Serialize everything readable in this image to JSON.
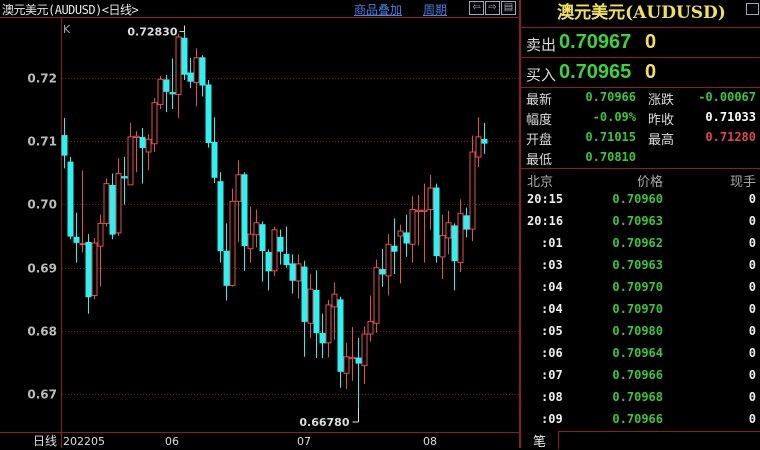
{
  "header": {
    "title": "澳元美元(AUDUSD)<日线>",
    "overlay_link": "商品叠加",
    "period_link": "周期",
    "nav_icons": [
      "arrow-left-icon",
      "arrow-right-icon",
      "split-panel-icon"
    ]
  },
  "quote": {
    "title": "澳元美元(AUDUSD)",
    "sell_label": "卖出",
    "sell_price": "0.70967",
    "sell_vol": "0",
    "buy_label": "买入",
    "buy_price": "0.70965",
    "buy_vol": "0",
    "stats": [
      {
        "label": "最新",
        "value": "0.70966",
        "color": "#3ec43e"
      },
      {
        "label": "涨跌",
        "value": "-0.00067",
        "color": "#3ec43e"
      },
      {
        "label": "幅度",
        "value": "-0.09%",
        "color": "#3ec43e"
      },
      {
        "label": "昨收",
        "value": "0.71033",
        "color": "#ffffff"
      },
      {
        "label": "开盘",
        "value": "0.71015",
        "color": "#3ec43e"
      },
      {
        "label": "最高",
        "value": "0.71280",
        "color": "#e04848"
      },
      {
        "label": "最低",
        "value": "0.70810",
        "color": "#3ec43e"
      }
    ]
  },
  "ticks": {
    "headers": [
      "北京",
      "价格",
      "现手"
    ],
    "rows": [
      [
        "20:15",
        "0.70960",
        "0"
      ],
      [
        "20:16",
        "0.70963",
        "0"
      ],
      [
        ":01",
        "0.70962",
        "0"
      ],
      [
        ":03",
        "0.70963",
        "0"
      ],
      [
        ":04",
        "0.70970",
        "0"
      ],
      [
        ":04",
        "0.70970",
        "0"
      ],
      [
        ":05",
        "0.70980",
        "0"
      ],
      [
        ":06",
        "0.70964",
        "0"
      ],
      [
        ":07",
        "0.70966",
        "0"
      ],
      [
        ":08",
        "0.70968",
        "0"
      ],
      [
        ":09",
        "0.70966",
        "0"
      ]
    ],
    "tab": "笔"
  },
  "chart_data": {
    "type": "candlestick",
    "indicator_label": "K",
    "period_label": "日线",
    "ylim": [
      0.664,
      0.7295
    ],
    "yticks": [
      "0.72",
      "0.71",
      "0.70",
      "0.69",
      "0.68",
      "0.67"
    ],
    "xticks": [
      {
        "label": "202205",
        "index": 0
      },
      {
        "label": "06",
        "index": 17
      },
      {
        "label": "07",
        "index": 39
      },
      {
        "label": "08",
        "index": 60
      }
    ],
    "high_label": "0.72830",
    "high_index": 20,
    "low_label": "0.66780",
    "low_index": 49,
    "up_color": "#e05050",
    "down_color": "#30f0f0",
    "grid": true,
    "ohlc": [
      [
        0.7109,
        0.7137,
        0.7057,
        0.7078
      ],
      [
        0.7067,
        0.7075,
        0.6945,
        0.695
      ],
      [
        0.6948,
        0.6987,
        0.6908,
        0.694
      ],
      [
        0.6937,
        0.7054,
        0.6924,
        0.6938
      ],
      [
        0.694,
        0.6953,
        0.6827,
        0.6854
      ],
      [
        0.6856,
        0.6947,
        0.685,
        0.6939
      ],
      [
        0.6934,
        0.6984,
        0.687,
        0.697
      ],
      [
        0.697,
        0.7041,
        0.6965,
        0.7033
      ],
      [
        0.703,
        0.7049,
        0.6945,
        0.6953
      ],
      [
        0.6955,
        0.7073,
        0.695,
        0.7049
      ],
      [
        0.7044,
        0.7075,
        0.7,
        0.7042
      ],
      [
        0.7031,
        0.7129,
        0.7031,
        0.7107
      ],
      [
        0.7106,
        0.7116,
        0.7051,
        0.7108
      ],
      [
        0.7106,
        0.7121,
        0.7033,
        0.709
      ],
      [
        0.7083,
        0.7111,
        0.7054,
        0.7103
      ],
      [
        0.7096,
        0.7168,
        0.7083,
        0.7161
      ],
      [
        0.7158,
        0.7203,
        0.7151,
        0.7198
      ],
      [
        0.7197,
        0.7205,
        0.7146,
        0.7179
      ],
      [
        0.7177,
        0.7231,
        0.7151,
        0.7175
      ],
      [
        0.7174,
        0.727,
        0.7137,
        0.7265
      ],
      [
        0.7263,
        0.7283,
        0.7197,
        0.7206
      ],
      [
        0.7208,
        0.7232,
        0.7184,
        0.7195
      ],
      [
        0.7193,
        0.7247,
        0.7155,
        0.7232
      ],
      [
        0.7232,
        0.7236,
        0.7171,
        0.7189
      ],
      [
        0.7189,
        0.7197,
        0.709,
        0.7098
      ],
      [
        0.7098,
        0.7138,
        0.7034,
        0.7043
      ],
      [
        0.7036,
        0.7051,
        0.6908,
        0.6927
      ],
      [
        0.6926,
        0.697,
        0.6848,
        0.6872
      ],
      [
        0.6872,
        0.7025,
        0.687,
        0.7005
      ],
      [
        0.7005,
        0.707,
        0.694,
        0.7047
      ],
      [
        0.7047,
        0.7051,
        0.6895,
        0.6935
      ],
      [
        0.693,
        0.6997,
        0.6908,
        0.6953
      ],
      [
        0.6952,
        0.6992,
        0.6932,
        0.6971
      ],
      [
        0.6968,
        0.6973,
        0.6878,
        0.6927
      ],
      [
        0.6924,
        0.6929,
        0.6864,
        0.6895
      ],
      [
        0.6895,
        0.6965,
        0.6887,
        0.696
      ],
      [
        0.6948,
        0.696,
        0.6905,
        0.6926
      ],
      [
        0.6921,
        0.6965,
        0.69,
        0.6905
      ],
      [
        0.6906,
        0.6921,
        0.6859,
        0.688
      ],
      [
        0.6879,
        0.6921,
        0.6851,
        0.6906
      ],
      [
        0.6901,
        0.6911,
        0.6759,
        0.6815
      ],
      [
        0.6812,
        0.689,
        0.6789,
        0.6866
      ],
      [
        0.6864,
        0.6896,
        0.6757,
        0.6797
      ],
      [
        0.6796,
        0.6827,
        0.6757,
        0.6781
      ],
      [
        0.6781,
        0.6849,
        0.6758,
        0.6841
      ],
      [
        0.6838,
        0.6877,
        0.6786,
        0.6858
      ],
      [
        0.6849,
        0.6854,
        0.671,
        0.6736
      ],
      [
        0.6733,
        0.6781,
        0.6708,
        0.6759
      ],
      [
        0.6756,
        0.6806,
        0.6721,
        0.6758
      ],
      [
        0.6757,
        0.6789,
        0.6678,
        0.6749
      ],
      [
        0.6745,
        0.6807,
        0.6716,
        0.6795
      ],
      [
        0.6795,
        0.6856,
        0.6783,
        0.6815
      ],
      [
        0.6812,
        0.6913,
        0.6797,
        0.69
      ],
      [
        0.6897,
        0.693,
        0.687,
        0.689
      ],
      [
        0.6887,
        0.6953,
        0.6856,
        0.6937
      ],
      [
        0.6934,
        0.6978,
        0.689,
        0.6926
      ],
      [
        0.695,
        0.6968,
        0.6875,
        0.6958
      ],
      [
        0.6955,
        0.6984,
        0.6917,
        0.6939
      ],
      [
        0.6937,
        0.7013,
        0.6908,
        0.6992
      ],
      [
        0.6989,
        0.7015,
        0.6935,
        0.6991
      ],
      [
        0.6989,
        0.7033,
        0.6908,
        0.6991
      ],
      [
        0.6992,
        0.7047,
        0.696,
        0.7026
      ],
      [
        0.7026,
        0.7033,
        0.6908,
        0.6919
      ],
      [
        0.6917,
        0.6984,
        0.6882,
        0.6951
      ],
      [
        0.6947,
        0.699,
        0.6921,
        0.6971
      ],
      [
        0.6966,
        0.697,
        0.6864,
        0.6911
      ],
      [
        0.6908,
        0.7008,
        0.6893,
        0.6986
      ],
      [
        0.6982,
        0.6995,
        0.6948,
        0.6961
      ],
      [
        0.6961,
        0.7109,
        0.6942,
        0.7083
      ],
      [
        0.7075,
        0.7138,
        0.7059,
        0.7107
      ],
      [
        0.7103,
        0.7129,
        0.708,
        0.7097
      ]
    ]
  }
}
